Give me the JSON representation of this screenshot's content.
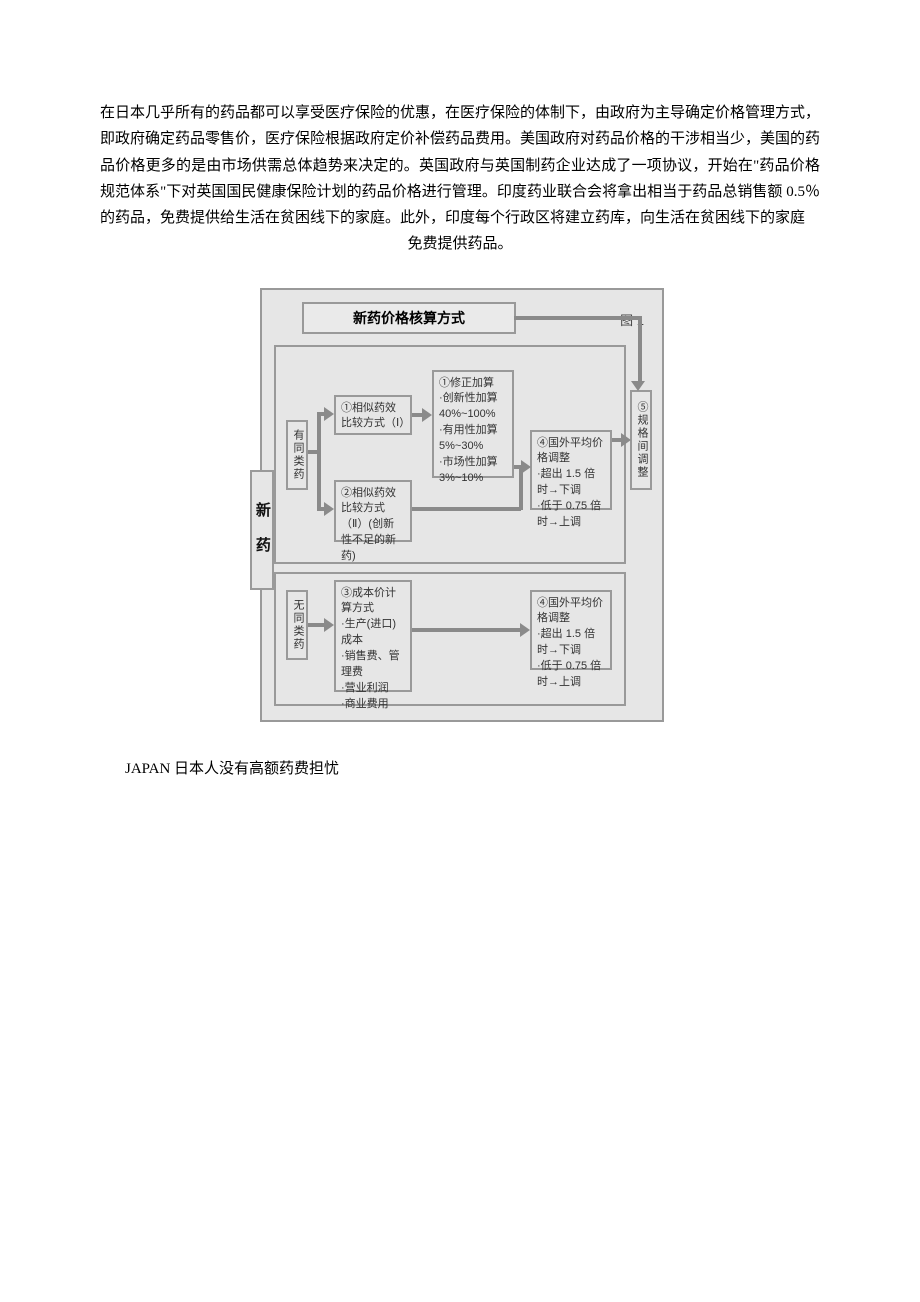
{
  "paragraph": {
    "main": "在日本几乎所有的药品都可以享受医疗保险的优惠，在医疗保险的体制下，由政府为主导确定价格管理方式，即政府确定药品零售价，医疗保险根据政府定价补偿药品费用。美国政府对药品价格的干涉相当少，美国的药品价格更多的是由市场供需总体趋势来决定的。英国政府与英国制药企业达成了一项协议，开始在\"药品价格规范体系\"下对英国国民健康保险计划的药品价格进行管理。印度药业联合会将拿出相当于药品总销售额 0.5％的药品，免费提供给生活在贫困线下的家庭。此外，印度每个行政区将建立药库，向生活在贫困线下的家庭",
    "last": "免费提供药品。"
  },
  "flowchart": {
    "title": "新药价格核算方式",
    "figLabel": "图 1",
    "newDrug": "新药",
    "branchSame": "有同类药",
    "branchDiff": "无同类药",
    "method1": "①相似药效比较方式（Ⅰ）",
    "method2": "②相似药效比较方式（Ⅱ）(创新性不足的新药)",
    "method3": "③成本价计算方式\n·生产(进口)成本\n·销售费、管理费\n·营业利润\n·商业费用",
    "adjustment": "①修正加算\n·创新性加算\n40%~100%\n·有用性加算\n5%~30%\n·市场性加算\n3%~10%",
    "foreign1": "④国外平均价格调整\n·超出 1.5 倍时→下调\n·低于 0.75 倍时→上调",
    "foreign2": "④国外平均价格调整\n·超出 1.5 倍时→下调\n·低于 0.75 倍时→上调",
    "regulation": "⑤规格间调整"
  },
  "heading": "JAPAN 日本人没有高额药费担忧",
  "colors": {
    "background": "#ffffff",
    "diagramBg": "#e6e6e6",
    "border": "#999999",
    "text": "#000000",
    "arrowColor": "#8a8a8a"
  }
}
